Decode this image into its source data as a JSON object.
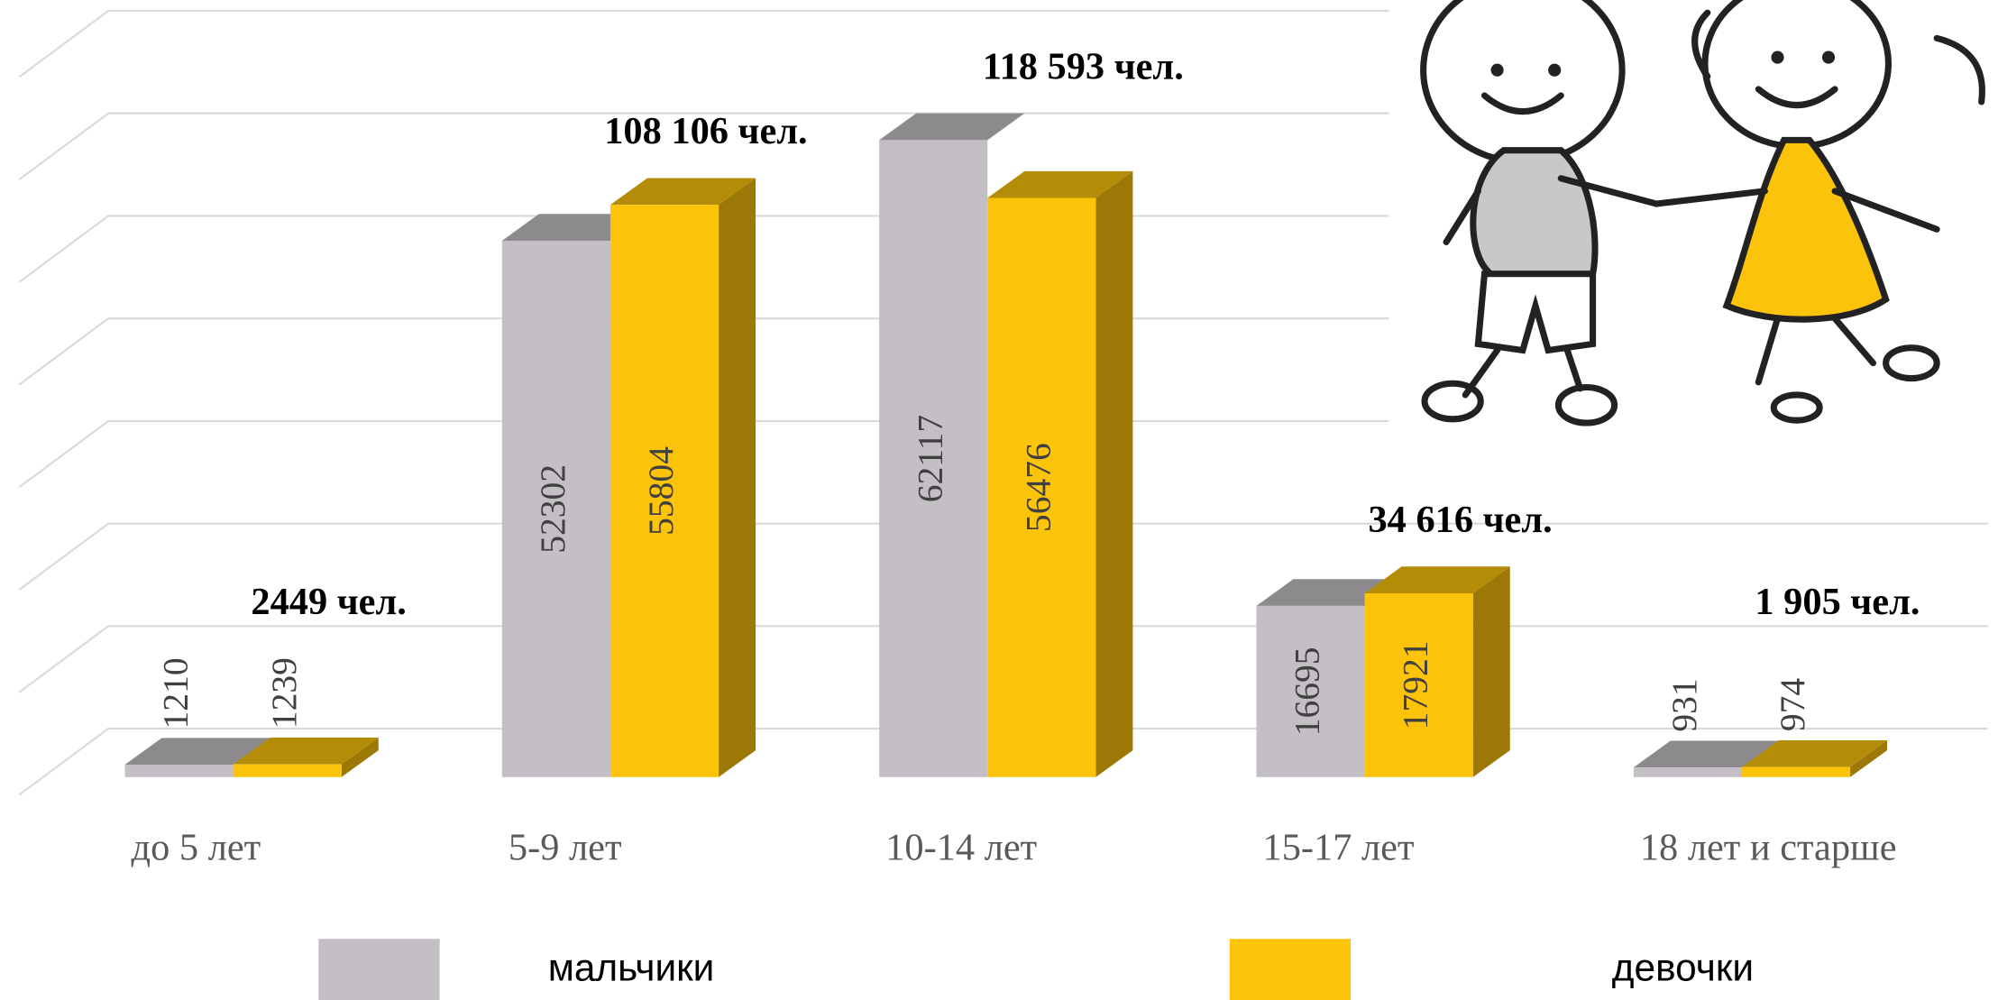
{
  "chart_data": {
    "type": "bar3d",
    "categories": [
      "до 5 лет",
      "5-9 лет",
      "10-14 лет",
      "15-17 лет",
      "18 лет и старше"
    ],
    "series": [
      {
        "name": "мальчики",
        "color": "#c3bfc4",
        "values": [
          1210,
          52302,
          62117,
          16695,
          931
        ]
      },
      {
        "name": "девочки",
        "color": "#fcc30b",
        "values": [
          1239,
          55804,
          56476,
          17921,
          974
        ]
      }
    ],
    "total_labels": [
      "2449 чел.",
      "108 106 чел.",
      "118 593 чел.",
      "34 616 чел.",
      "1 905 чел."
    ],
    "ylim": [
      0,
      70000
    ],
    "yticks": [
      0,
      10000,
      20000,
      30000,
      40000,
      50000,
      60000,
      70000
    ],
    "grid": true
  }
}
